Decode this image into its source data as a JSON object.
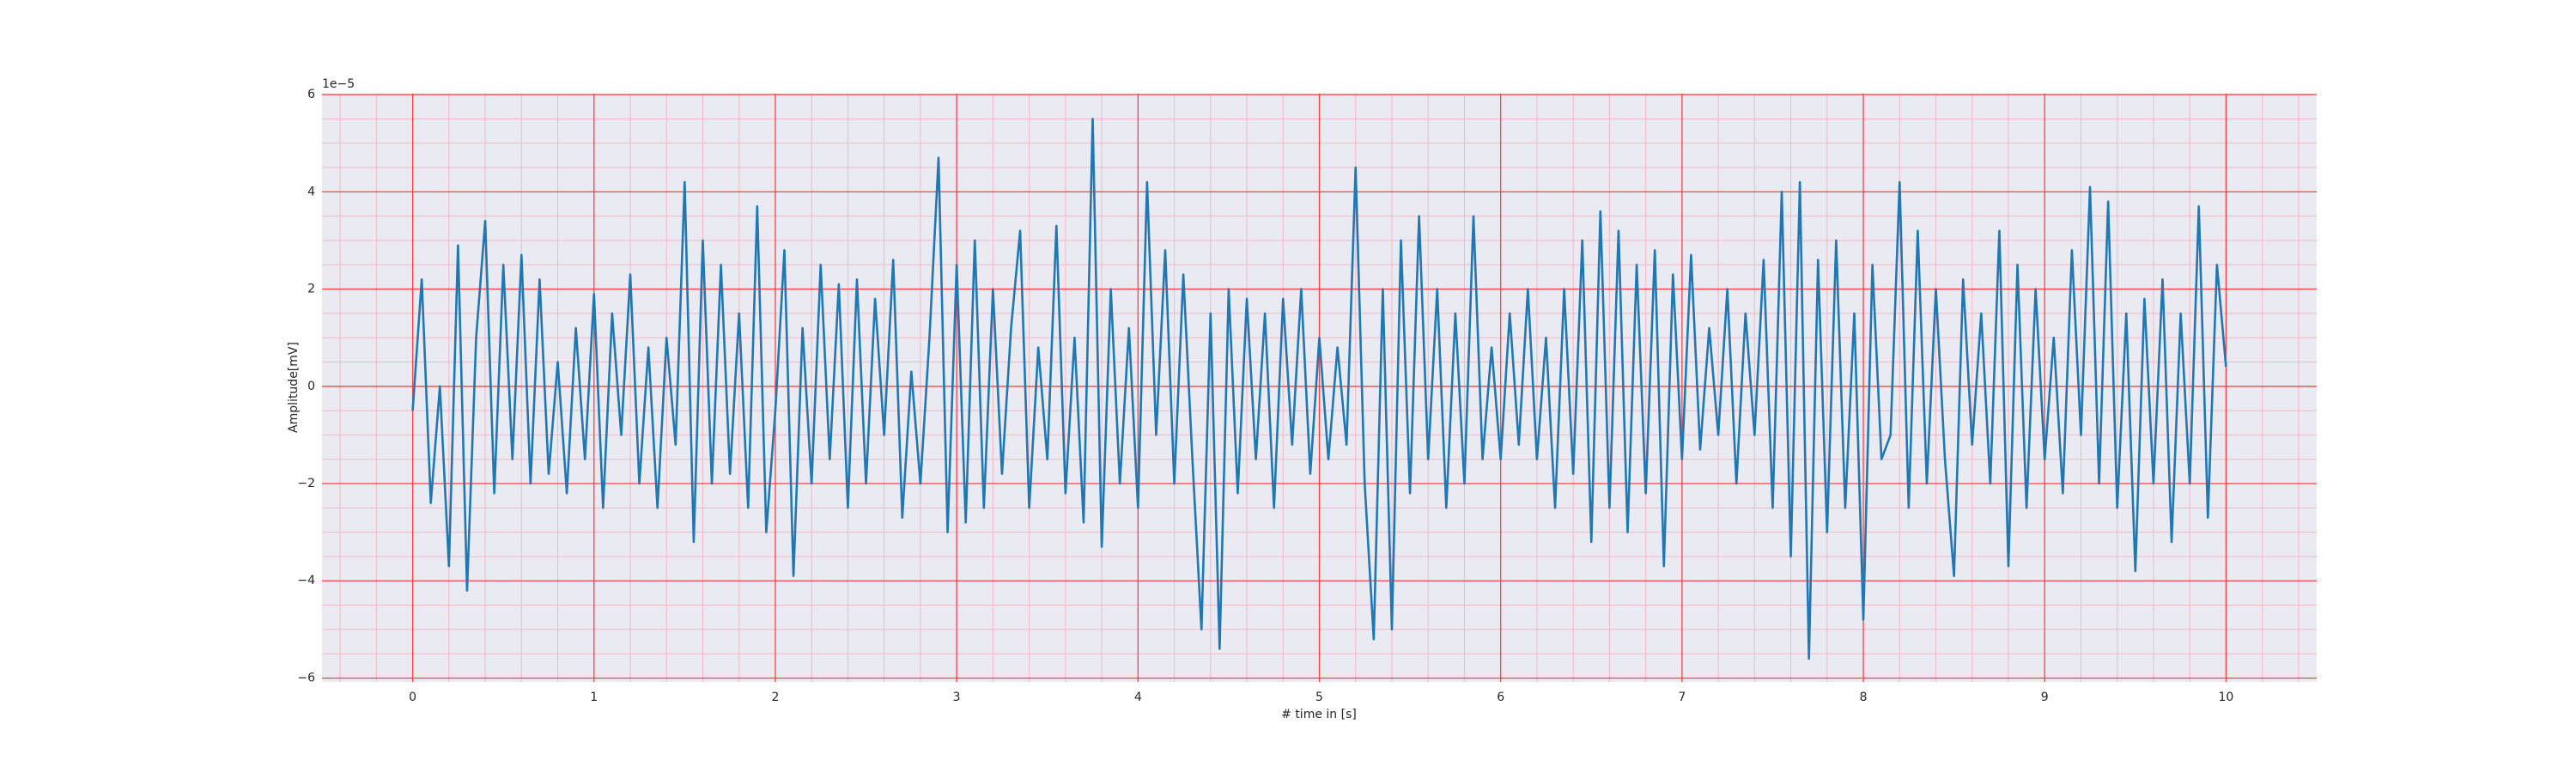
{
  "chart_data": {
    "type": "line",
    "x_label": "# time in [s]",
    "y_label": "Amplitude[mV]",
    "y_offset_label": "1e−5",
    "x": [
      0,
      0.05,
      0.1,
      0.15,
      0.2,
      0.25,
      0.3,
      0.35,
      0.4,
      0.45,
      0.5,
      0.55,
      0.6,
      0.65,
      0.7,
      0.75,
      0.8,
      0.85,
      0.9,
      0.95,
      1,
      1.05,
      1.1,
      1.15,
      1.2,
      1.25,
      1.3,
      1.35,
      1.4,
      1.45,
      1.5,
      1.55,
      1.6,
      1.65,
      1.7,
      1.75,
      1.8,
      1.85,
      1.9,
      1.95,
      2,
      2.05,
      2.1,
      2.15,
      2.2,
      2.25,
      2.3,
      2.35,
      2.4,
      2.45,
      2.5,
      2.55,
      2.6,
      2.65,
      2.7,
      2.75,
      2.8,
      2.85,
      2.9,
      2.95,
      3,
      3.05,
      3.1,
      3.15,
      3.2,
      3.25,
      3.3,
      3.35,
      3.4,
      3.45,
      3.5,
      3.55,
      3.6,
      3.65,
      3.7,
      3.75,
      3.8,
      3.85,
      3.9,
      3.95,
      4,
      4.05,
      4.1,
      4.15,
      4.2,
      4.25,
      4.3,
      4.35,
      4.4,
      4.45,
      4.5,
      4.55,
      4.6,
      4.65,
      4.7,
      4.75,
      4.8,
      4.85,
      4.9,
      4.95,
      5,
      5.05,
      5.1,
      5.15,
      5.2,
      5.25,
      5.3,
      5.35,
      5.4,
      5.45,
      5.5,
      5.55,
      5.6,
      5.65,
      5.7,
      5.75,
      5.8,
      5.85,
      5.9,
      5.95,
      6,
      6.05,
      6.1,
      6.15,
      6.2,
      6.25,
      6.3,
      6.35,
      6.4,
      6.45,
      6.5,
      6.55,
      6.6,
      6.65,
      6.7,
      6.75,
      6.8,
      6.85,
      6.9,
      6.95,
      7,
      7.05,
      7.1,
      7.15,
      7.2,
      7.25,
      7.3,
      7.35,
      7.4,
      7.45,
      7.5,
      7.55,
      7.6,
      7.65,
      7.7,
      7.75,
      7.8,
      7.85,
      7.9,
      7.95,
      8,
      8.05,
      8.1,
      8.15,
      8.2,
      8.25,
      8.3,
      8.35,
      8.4,
      8.45,
      8.5,
      8.55,
      8.6,
      8.65,
      8.7,
      8.75,
      8.8,
      8.85,
      8.9,
      8.95,
      9,
      9.05,
      9.1,
      9.15,
      9.2,
      9.25,
      9.3,
      9.35,
      9.4,
      9.45,
      9.5,
      9.55,
      9.6,
      9.65,
      9.7,
      9.75,
      9.8,
      9.85,
      9.9,
      9.95,
      10
    ],
    "series": [
      {
        "color": "#1f77b4",
        "values": [
          -0.5,
          2.2,
          -2.4,
          0.0,
          -3.7,
          2.9,
          -4.2,
          1.0,
          3.4,
          -2.2,
          2.5,
          -1.5,
          2.7,
          -2.0,
          2.2,
          -1.8,
          0.5,
          -2.2,
          1.2,
          -1.5,
          1.9,
          -2.5,
          1.5,
          -1.0,
          2.3,
          -2.0,
          0.8,
          -2.5,
          1.0,
          -1.2,
          4.2,
          -3.2,
          3.0,
          -2.0,
          2.5,
          -1.8,
          1.5,
          -2.5,
          3.7,
          -3.0,
          -0.5,
          2.8,
          -3.9,
          1.2,
          -2.0,
          2.5,
          -1.5,
          2.1,
          -2.5,
          2.2,
          -2.0,
          1.8,
          -1.0,
          2.6,
          -2.7,
          0.3,
          -2.0,
          1.0,
          4.7,
          -3.0,
          2.5,
          -2.8,
          3.0,
          -2.5,
          2.0,
          -1.8,
          1.2,
          3.2,
          -2.5,
          0.8,
          -1.5,
          3.3,
          -2.2,
          1.0,
          -2.8,
          5.5,
          -3.3,
          2.0,
          -2.0,
          1.2,
          -2.5,
          4.2,
          -1.0,
          2.8,
          -2.0,
          2.3,
          -1.5,
          -5.0,
          1.5,
          -5.4,
          2.0,
          -2.2,
          1.8,
          -1.5,
          1.5,
          -2.5,
          1.8,
          -1.2,
          2.0,
          -1.8,
          1.0,
          -1.5,
          0.8,
          -1.2,
          4.5,
          -2.0,
          -5.2,
          2.0,
          -5.0,
          3.0,
          -2.2,
          3.5,
          -1.5,
          2.0,
          -2.5,
          1.5,
          -2.0,
          3.5,
          -1.5,
          0.8,
          -1.5,
          1.5,
          -1.2,
          2.0,
          -1.5,
          1.0,
          -2.5,
          2.0,
          -1.8,
          3.0,
          -3.2,
          3.6,
          -2.5,
          3.2,
          -3.0,
          2.5,
          -2.2,
          2.8,
          -3.7,
          2.3,
          -1.5,
          2.7,
          -1.3,
          1.2,
          -1.0,
          2.0,
          -2.0,
          1.5,
          -1.0,
          2.6,
          -2.5,
          4.0,
          -3.5,
          4.2,
          -5.6,
          2.6,
          -3.0,
          3.0,
          -2.5,
          1.5,
          -4.8,
          2.5,
          -1.5,
          -1.0,
          4.2,
          -2.5,
          3.2,
          -2.0,
          2.0,
          -1.5,
          -3.9,
          2.2,
          -1.2,
          1.5,
          -2.0,
          3.2,
          -3.7,
          2.5,
          -2.5,
          2.0,
          -1.5,
          1.0,
          -2.2,
          2.8,
          -1.0,
          4.1,
          -2.0,
          3.8,
          -2.5,
          1.5,
          -3.8,
          1.8,
          -2.0,
          2.2,
          -3.2,
          1.5,
          -2.0,
          3.7,
          -2.7,
          2.5,
          0.4
        ]
      }
    ],
    "xlim": [
      -0.5,
      10.5
    ],
    "ylim": [
      -6.08,
      6.02
    ],
    "xticks": [
      0,
      1,
      2,
      3,
      4,
      5,
      6,
      7,
      8,
      9,
      10
    ],
    "yticks": [
      {
        "value": -6,
        "label": "−6"
      },
      {
        "value": -4,
        "label": "−4"
      },
      {
        "value": -2,
        "label": "−2"
      },
      0,
      2,
      4,
      6
    ],
    "xminorticks": [
      -0.4,
      -0.2,
      0.2,
      0.4,
      0.6,
      0.8,
      1.2,
      1.4,
      1.6,
      1.8,
      2.2,
      2.4,
      2.6,
      2.8,
      3.2,
      3.4,
      3.6,
      3.8,
      4.2,
      4.4,
      4.6,
      4.8,
      5.2,
      5.4,
      5.6,
      5.8,
      6.2,
      6.4,
      6.6,
      6.8,
      7.2,
      7.4,
      7.6,
      7.8,
      8.2,
      8.4,
      8.6,
      8.8,
      9.2,
      9.4,
      9.6,
      9.8,
      10.2,
      10.4
    ],
    "yminorticks": [
      -5.5,
      -5,
      -4.5,
      -3.5,
      -3,
      -2.5,
      -1.5,
      -1,
      -0.5,
      0.5,
      1,
      1.5,
      2.5,
      3,
      3.5,
      4.5,
      5,
      5.5
    ],
    "grid": true,
    "minor_grid": true,
    "grid_color": "#ff4040",
    "minor_grid_color": "#f4b8c4",
    "background": "#eaeaf2"
  }
}
